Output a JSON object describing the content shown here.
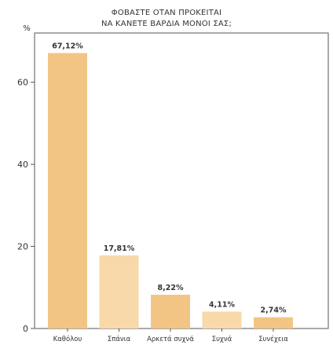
{
  "chart_data": {
    "type": "bar",
    "title": [
      "ΦΟΒΑΣΤΕ ΟΤΑΝ ΠΡΟΚΕΙΤΑΙ",
      "ΝΑ ΚΑΝΕΤΕ ΒΑΡΔΙΑ ΜΟΝΟΙ ΣΑΣ;"
    ],
    "ylabel": "%",
    "xlabel": "",
    "categories": [
      "Καθόλου",
      "Σπάνια",
      "Αρκετά συχνά",
      "Συχνά",
      "Συνέχεια"
    ],
    "values": [
      67.12,
      17.81,
      8.22,
      4.11,
      2.74
    ],
    "data_labels": [
      "67,12%",
      "17,81%",
      "8,22%",
      "4,11%",
      "2,74%"
    ],
    "ylim": [
      0,
      72
    ],
    "yticks": [
      0,
      20,
      40,
      60
    ],
    "grid": false,
    "legend": "none",
    "colors": {
      "bars": [
        "#f2c585",
        "#f8d9a9",
        "#f2c585",
        "#f8d9a9",
        "#f2c585"
      ],
      "frame": "#555555",
      "text": "#333333"
    }
  }
}
